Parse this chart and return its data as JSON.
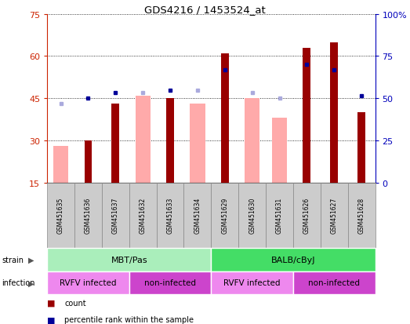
{
  "title": "GDS4216 / 1453524_at",
  "samples": [
    "GSM451635",
    "GSM451636",
    "GSM451637",
    "GSM451632",
    "GSM451633",
    "GSM451634",
    "GSM451629",
    "GSM451630",
    "GSM451631",
    "GSM451626",
    "GSM451627",
    "GSM451628"
  ],
  "count_values": [
    null,
    30,
    43,
    null,
    45,
    null,
    61,
    null,
    null,
    63,
    65,
    40
  ],
  "count_absent": [
    true,
    false,
    false,
    true,
    false,
    true,
    false,
    true,
    true,
    false,
    false,
    false
  ],
  "pink_bar_values": [
    28,
    null,
    null,
    46,
    null,
    43,
    null,
    45,
    38,
    null,
    null,
    null
  ],
  "blue_dot_values": [
    43,
    45,
    47,
    47,
    48,
    48,
    55,
    47,
    45,
    57,
    55,
    46
  ],
  "blue_dot_absent": [
    true,
    false,
    false,
    true,
    false,
    true,
    false,
    true,
    true,
    false,
    false,
    false
  ],
  "strain_groups": [
    {
      "label": "MBT/Pas",
      "start": 0,
      "end": 6,
      "color": "#AAEEBB"
    },
    {
      "label": "BALB/cByJ",
      "start": 6,
      "end": 12,
      "color": "#44DD66"
    }
  ],
  "infection_groups": [
    {
      "label": "RVFV infected",
      "start": 0,
      "end": 3,
      "color": "#EE88EE"
    },
    {
      "label": "non-infected",
      "start": 3,
      "end": 6,
      "color": "#CC44CC"
    },
    {
      "label": "RVFV infected",
      "start": 6,
      "end": 9,
      "color": "#EE88EE"
    },
    {
      "label": "non-infected",
      "start": 9,
      "end": 12,
      "color": "#CC44CC"
    }
  ],
  "ylim_left": [
    15,
    75
  ],
  "ylim_right": [
    0,
    100
  ],
  "yticks_left": [
    15,
    30,
    45,
    60,
    75
  ],
  "yticks_right": [
    0,
    25,
    50,
    75,
    100
  ],
  "dark_red": "#990000",
  "light_pink": "#FFAAAA",
  "dark_blue": "#000099",
  "light_blue": "#AAAADD",
  "left_axis_color": "#CC2200",
  "right_axis_color": "#0000BB",
  "sample_box_color": "#CCCCCC",
  "sample_box_edge": "#888888"
}
